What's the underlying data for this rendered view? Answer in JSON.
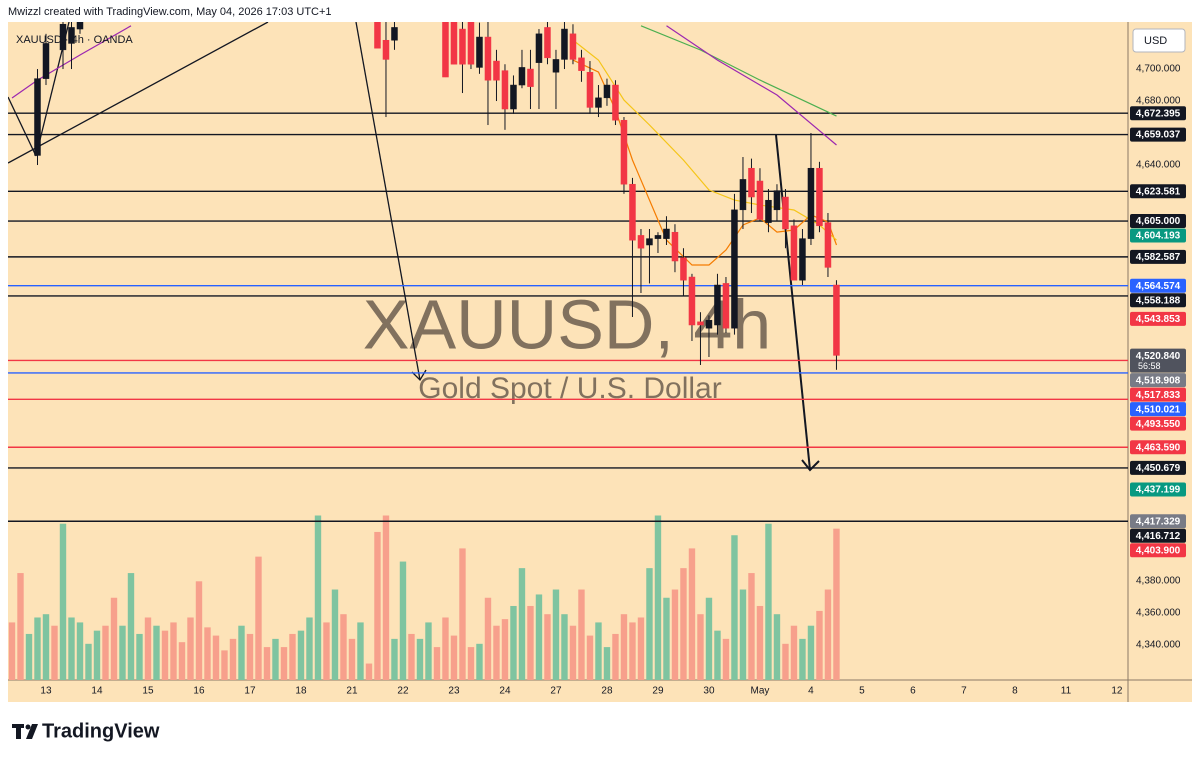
{
  "chart_data": {
    "type": "candlestick",
    "title": "Mwizzl created with TradingView.com, May 04, 2026 17:03 UTC+1",
    "symbol_legend": "XAUUSD · 4h · OANDA",
    "watermark": "XAUUSD, 4h",
    "watermark_subtitle": "Gold Spot / U.S. Dollar",
    "currency": "USD",
    "xlim": [
      -0.47,
      131.3
    ],
    "xticks": [
      {
        "value": 4,
        "label": "13"
      },
      {
        "value": 10,
        "label": "14"
      },
      {
        "value": 16,
        "label": "15"
      },
      {
        "value": 22,
        "label": "16"
      },
      {
        "value": 28,
        "label": "17"
      },
      {
        "value": 34,
        "label": "18"
      },
      {
        "value": 40,
        "label": "21"
      },
      {
        "value": 46,
        "label": "22"
      },
      {
        "value": 52,
        "label": "23"
      },
      {
        "value": 58,
        "label": "24"
      },
      {
        "value": 64,
        "label": "27"
      },
      {
        "value": 70,
        "label": "28"
      },
      {
        "value": 76,
        "label": "29"
      },
      {
        "value": 82,
        "label": "30"
      },
      {
        "value": 88,
        "label": "May"
      },
      {
        "value": 94,
        "label": "4"
      },
      {
        "value": 100,
        "label": "5"
      },
      {
        "value": 106,
        "label": "6"
      },
      {
        "value": 112,
        "label": "7"
      },
      {
        "value": 118,
        "label": "8"
      },
      {
        "value": 124,
        "label": "11"
      },
      {
        "value": 130,
        "label": "12"
      }
    ],
    "ylim": [
      4318.1,
      4729.4
    ],
    "yticks": [
      {
        "value": 4700,
        "label": "4,700.000"
      },
      {
        "value": 4680,
        "label": "4,680.000"
      },
      {
        "value": 4640,
        "label": "4,640.000"
      },
      {
        "value": 4380,
        "label": "4,380.000"
      },
      {
        "value": 4360,
        "label": "4,360.000"
      },
      {
        "value": 4340,
        "label": "4,340.000"
      }
    ],
    "up_color": "#089981",
    "down_color": "#f23645",
    "candles": [
      null,
      null,
      null,
      {
        "open": 4646,
        "high": 4700,
        "low": 4640,
        "close": 4694
      },
      {
        "open": 4694,
        "high": 4722,
        "low": 4690,
        "close": 4716
      },
      null,
      {
        "open": 4712,
        "high": 4735,
        "low": 4700,
        "close": 4728
      },
      {
        "open": 4716,
        "high": 4735,
        "low": 4700,
        "close": 4726
      },
      {
        "open": 4725,
        "high": 4738,
        "low": 4722,
        "close": 4735
      },
      null,
      null,
      null,
      null,
      null,
      null,
      null,
      null,
      null,
      null,
      null,
      null,
      null,
      null,
      null,
      null,
      null,
      null,
      null,
      null,
      null,
      null,
      null,
      null,
      null,
      null,
      null,
      null,
      null,
      null,
      null,
      null,
      null,
      null,
      {
        "open": 4735,
        "high": 4738,
        "low": 4714,
        "close": 4713
      },
      {
        "open": 4718,
        "high": 4735,
        "low": 4670,
        "close": 4706
      },
      {
        "open": 4718,
        "high": 4730,
        "low": 4712,
        "close": 4726
      },
      null,
      null,
      null,
      null,
      null,
      {
        "open": 4735,
        "high": 4738,
        "low": 4695,
        "close": 4695
      },
      {
        "open": 4731,
        "high": 4738,
        "low": 4703,
        "close": 4703
      },
      {
        "open": 4725,
        "high": 4731,
        "low": 4685,
        "close": 4703
      },
      {
        "open": 4735,
        "high": 4738,
        "low": 4700,
        "close": 4703
      },
      {
        "open": 4701,
        "high": 4729,
        "low": 4697,
        "close": 4720
      },
      {
        "open": 4720,
        "high": 4730,
        "low": 4665,
        "close": 4693
      },
      {
        "open": 4705,
        "high": 4712,
        "low": 4680,
        "close": 4693
      },
      {
        "open": 4699,
        "high": 4703,
        "low": 4662,
        "close": 4675
      },
      {
        "open": 4675,
        "high": 4696,
        "low": 4672,
        "close": 4690
      },
      {
        "open": 4690,
        "high": 4712,
        "low": 4688,
        "close": 4701
      },
      {
        "open": 4700,
        "high": 4712,
        "low": 4675,
        "close": 4689
      },
      {
        "open": 4704,
        "high": 4725,
        "low": 4675,
        "close": 4722
      },
      {
        "open": 4726,
        "high": 4735,
        "low": 4703,
        "close": 4707
      },
      {
        "open": 4698,
        "high": 4712,
        "low": 4675,
        "close": 4706
      },
      {
        "open": 4706,
        "high": 4730,
        "low": 4700,
        "close": 4725
      },
      {
        "open": 4722,
        "high": 4728,
        "low": 4703,
        "close": 4706
      },
      {
        "open": 4707,
        "high": 4712,
        "low": 4692,
        "close": 4699
      },
      {
        "open": 4698,
        "high": 4705,
        "low": 4672,
        "close": 4676
      },
      {
        "open": 4676,
        "high": 4690,
        "low": 4670,
        "close": 4682
      },
      {
        "open": 4682,
        "high": 4694,
        "low": 4677,
        "close": 4690
      },
      {
        "open": 4690,
        "high": 4693,
        "low": 4665,
        "close": 4668
      },
      {
        "open": 4668,
        "high": 4670,
        "low": 4622,
        "close": 4628
      },
      {
        "open": 4628,
        "high": 4632,
        "low": 4545,
        "close": 4593
      },
      {
        "open": 4596,
        "high": 4600,
        "low": 4560,
        "close": 4588
      },
      {
        "open": 4590,
        "high": 4600,
        "low": 4566,
        "close": 4594
      },
      {
        "open": 4594,
        "high": 4598,
        "low": 4585,
        "close": 4596
      },
      {
        "open": 4594,
        "high": 4608,
        "low": 4590,
        "close": 4600
      },
      {
        "open": 4598,
        "high": 4603,
        "low": 4573,
        "close": 4580
      },
      {
        "open": 4582,
        "high": 4588,
        "low": 4558,
        "close": 4568
      },
      {
        "open": 4570,
        "high": 4572,
        "low": 4530,
        "close": 4540
      },
      {
        "open": 4542,
        "high": 4548,
        "low": 4515,
        "close": 4540
      },
      {
        "open": 4538,
        "high": 4546,
        "low": 4520,
        "close": 4543
      },
      {
        "open": 4540,
        "high": 4572,
        "low": 4534,
        "close": 4565
      },
      {
        "open": 4566,
        "high": 4570,
        "low": 4535,
        "close": 4538
      },
      {
        "open": 4538,
        "high": 4622,
        "low": 4534,
        "close": 4612
      },
      {
        "open": 4612,
        "high": 4645,
        "low": 4600,
        "close": 4631
      },
      {
        "open": 4638,
        "high": 4644,
        "low": 4610,
        "close": 4620
      },
      {
        "open": 4630,
        "high": 4638,
        "low": 4605,
        "close": 4606
      },
      {
        "open": 4604,
        "high": 4625,
        "low": 4598,
        "close": 4618
      },
      {
        "open": 4612,
        "high": 4628,
        "low": 4605,
        "close": 4624
      },
      {
        "open": 4620,
        "high": 4625,
        "low": 4588,
        "close": 4600
      },
      {
        "open": 4602,
        "high": 4606,
        "low": 4568,
        "close": 4568
      },
      {
        "open": 4568,
        "high": 4600,
        "low": 4565,
        "close": 4594
      },
      {
        "open": 4594,
        "high": 4660,
        "low": 4590,
        "close": 4638
      },
      {
        "open": 4638,
        "high": 4642,
        "low": 4598,
        "close": 4602
      },
      {
        "open": 4604,
        "high": 4610,
        "low": 4570,
        "close": 4576
      },
      {
        "open": 4565,
        "high": 4568,
        "low": 4512,
        "close": 4521
      }
    ],
    "y2lim": [
      0,
      400
    ],
    "volume_up_color": "#7fc4a0",
    "volume_down_color": "#f7a08c",
    "volume": {
      "values": [
        35,
        65,
        28,
        38,
        40,
        33,
        95,
        38,
        35,
        22,
        30,
        33,
        50,
        33,
        65,
        28,
        38,
        33,
        30,
        35,
        23,
        38,
        60,
        32,
        27,
        18,
        25,
        33,
        28,
        75,
        20,
        25,
        20,
        28,
        30,
        38,
        100,
        35,
        55,
        40,
        25,
        35,
        10,
        90,
        100,
        25,
        72,
        28,
        25,
        35,
        20,
        38,
        27,
        80,
        20,
        22,
        50,
        33,
        37,
        45,
        68,
        45,
        52,
        40,
        55,
        40,
        33,
        55,
        27,
        35,
        20,
        28,
        40,
        35,
        38,
        68,
        100,
        50,
        55,
        68,
        80,
        40,
        50,
        30,
        25,
        88,
        55,
        65,
        45,
        95,
        40,
        22,
        33,
        25,
        33,
        42,
        55,
        92
      ],
      "up": [
        false,
        false,
        true,
        true,
        true,
        false,
        true,
        true,
        true,
        true,
        true,
        false,
        false,
        true,
        true,
        true,
        false,
        true,
        false,
        false,
        false,
        false,
        false,
        false,
        false,
        false,
        false,
        true,
        false,
        false,
        false,
        true,
        false,
        false,
        true,
        true,
        true,
        false,
        true,
        false,
        false,
        true,
        false,
        false,
        false,
        true,
        true,
        false,
        true,
        true,
        false,
        false,
        false,
        false,
        false,
        true,
        false,
        false,
        false,
        true,
        true,
        false,
        true,
        false,
        true,
        true,
        false,
        false,
        false,
        true,
        true,
        false,
        false,
        false,
        false,
        true,
        true,
        true,
        false,
        false,
        false,
        false,
        true,
        true,
        false,
        true,
        true,
        false,
        false,
        true,
        true,
        false,
        false,
        true,
        true,
        false,
        false,
        false
      ]
    },
    "moving_averages": [
      {
        "color": "#f57c00",
        "x": [
          66,
          69,
          71,
          73,
          75,
          77,
          80,
          82,
          84,
          86,
          88,
          90,
          92,
          94,
          96,
          97
        ],
        "values": [
          4705.6,
          4698.1,
          4674.4,
          4643.1,
          4618.1,
          4593.1,
          4577.5,
          4577.5,
          4586.9,
          4602.5,
          4606.9,
          4598.1,
          4599.4,
          4608.8,
          4604.4,
          4590
        ]
      },
      {
        "color": "#f5c518",
        "x": [
          66,
          69,
          72,
          75,
          79,
          82,
          85,
          88,
          92,
          95,
          97
        ],
        "values": [
          4718.1,
          4705.6,
          4680.6,
          4665,
          4643.1,
          4624.4,
          4618.1,
          4615,
          4611.9,
          4602.5,
          4593.1
        ]
      },
      {
        "color": "#4caf50",
        "x": [
          74,
          81,
          88,
          93,
          97
        ],
        "values": [
          4727,
          4711.9,
          4693.1,
          4680.6,
          4670.6
        ]
      },
      {
        "color": "#9c27b0",
        "x": [
          0,
          3,
          8,
          14,
          15,
          77,
          83,
          90,
          97
        ],
        "values": [
          4681.9,
          4693.1,
          4708.8,
          4727,
          null,
          4727,
          4705.6,
          4683.8,
          4652.5
        ]
      }
    ],
    "levels": [
      {
        "value": 4672.395,
        "label": "4,672.395",
        "label_color": "#131722",
        "line_color": "#131722"
      },
      {
        "value": 4659.037,
        "label": "4,659.037",
        "label_color": "#131722",
        "line_color": "#131722"
      },
      {
        "value": 4623.581,
        "label": "4,623.581",
        "label_color": "#131722",
        "line_color": "#131722"
      },
      {
        "value": 4605.0,
        "label": "4,605.000",
        "label_color": "#131722",
        "line_color": "#131722"
      },
      {
        "value": 4604.193,
        "label": "4,604.193",
        "label_color": "#089981",
        "line_color": null
      },
      {
        "value": 4582.587,
        "label": "4,582.587",
        "label_color": "#131722",
        "line_color": "#131722"
      },
      {
        "value": 4564.574,
        "label": "4,564.574",
        "label_color": "#2962ff",
        "line_color": "#2962ff"
      },
      {
        "value": 4558.188,
        "label": "4,558.188",
        "label_color": "#131722",
        "line_color": "#131722"
      },
      {
        "value": 4543.853,
        "label": "4,543.853",
        "label_color": "#f23645",
        "line_color": null
      },
      {
        "value": 4520.84,
        "label": "4,520.840",
        "label_color": "#50535e",
        "line_color": null,
        "countdown": "56:58"
      },
      {
        "value": 4518.908,
        "label": "4,518.908",
        "label_color": "#787b86",
        "line_color": null
      },
      {
        "value": 4517.833,
        "label": "4,517.833",
        "label_color": "#f23645",
        "line_color": "#f23645"
      },
      {
        "value": 4510.021,
        "label": "4,510.021",
        "label_color": "#2962ff",
        "line_color": "#2962ff"
      },
      {
        "value": 4493.55,
        "label": "4,493.550",
        "label_color": "#f23645",
        "line_color": "#f23645"
      },
      {
        "value": 4463.59,
        "label": "4,463.590",
        "label_color": "#f23645",
        "line_color": "#f23645"
      },
      {
        "value": 4450.679,
        "label": "4,450.679",
        "label_color": "#131722",
        "line_color": "#131722"
      },
      {
        "value": 4437.199,
        "label": "4,437.199",
        "label_color": "#089981",
        "line_color": null
      },
      {
        "value": 4417.329,
        "label": "4,417.329",
        "label_color": "#787b86",
        "line_color": "#131722"
      },
      {
        "value": 4416.712,
        "label": "4,416.712",
        "label_color": "#131722",
        "line_color": null
      },
      {
        "value": 4403.9,
        "label": "4,403.900",
        "label_color": "#f23645",
        "line_color": null
      }
    ]
  },
  "footer": {
    "brand": "TradingView"
  }
}
